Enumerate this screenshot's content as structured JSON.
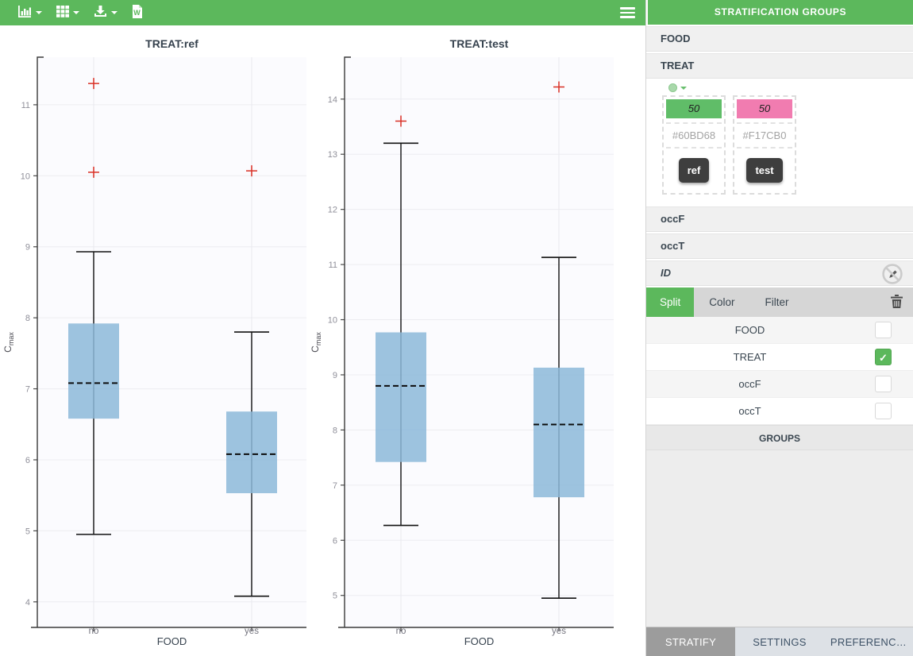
{
  "toolbar": {
    "icons": [
      "chart-type-menu",
      "table-menu",
      "download-menu",
      "word-export"
    ],
    "menu_icon": "hamburger"
  },
  "sidebar": {
    "title": "STRATIFICATION GROUPS",
    "accordion": [
      "FOOD",
      "TREAT",
      "occF",
      "occT",
      "ID"
    ],
    "treat_panel": {
      "groups": [
        {
          "count": "50",
          "color": "#60BD68",
          "label": "ref"
        },
        {
          "count": "50",
          "color": "#F17CB0",
          "label": "test"
        }
      ]
    },
    "tabs": {
      "active": "Split",
      "items": [
        "Split",
        "Color",
        "Filter"
      ]
    },
    "split_list": [
      {
        "label": "FOOD",
        "checked": false
      },
      {
        "label": "TREAT",
        "checked": true
      },
      {
        "label": "occF",
        "checked": false
      },
      {
        "label": "occT",
        "checked": false
      }
    ],
    "groups_header": "GROUPS",
    "footer_tabs": {
      "active": "STRATIFY",
      "items": [
        "STRATIFY",
        "SETTINGS",
        "PREFERENC…"
      ]
    }
  },
  "chart_data": [
    {
      "type": "boxplot",
      "title": "TREAT:ref",
      "xlabel": "FOOD",
      "ylabel": "Cmax",
      "ylabel_main": "C",
      "ylabel_sub": "max",
      "categories": [
        "no",
        "yes"
      ],
      "yticks": [
        4,
        5,
        6,
        7,
        8,
        9,
        10,
        11
      ],
      "ylim": [
        3.64,
        11.67
      ],
      "grid": true,
      "legend": "none",
      "box_color": "#8CB9D9",
      "outlier_color": "#D93025",
      "boxes": [
        {
          "category": "no",
          "whisker_low": 4.95,
          "q1": 6.58,
          "median": 7.08,
          "q3": 7.92,
          "whisker_high": 8.93,
          "outliers": [
            10.05,
            11.3
          ]
        },
        {
          "category": "yes",
          "whisker_low": 4.08,
          "q1": 5.53,
          "median": 6.08,
          "q3": 6.68,
          "whisker_high": 7.8,
          "outliers": [
            10.07
          ]
        }
      ]
    },
    {
      "type": "boxplot",
      "title": "TREAT:test",
      "xlabel": "FOOD",
      "ylabel": "Cmax",
      "ylabel_main": "C",
      "ylabel_sub": "max",
      "categories": [
        "no",
        "yes"
      ],
      "yticks": [
        5,
        6,
        7,
        8,
        9,
        10,
        11,
        12,
        13,
        14
      ],
      "ylim": [
        4.42,
        14.76
      ],
      "grid": true,
      "legend": "none",
      "box_color": "#8CB9D9",
      "outlier_color": "#D93025",
      "boxes": [
        {
          "category": "no",
          "whisker_low": 6.27,
          "q1": 7.42,
          "median": 8.8,
          "q3": 9.77,
          "whisker_high": 13.2,
          "outliers": [
            13.6
          ]
        },
        {
          "category": "yes",
          "whisker_low": 4.95,
          "q1": 6.78,
          "median": 8.1,
          "q3": 9.13,
          "whisker_high": 11.13,
          "outliers": [
            14.22
          ]
        }
      ]
    }
  ]
}
